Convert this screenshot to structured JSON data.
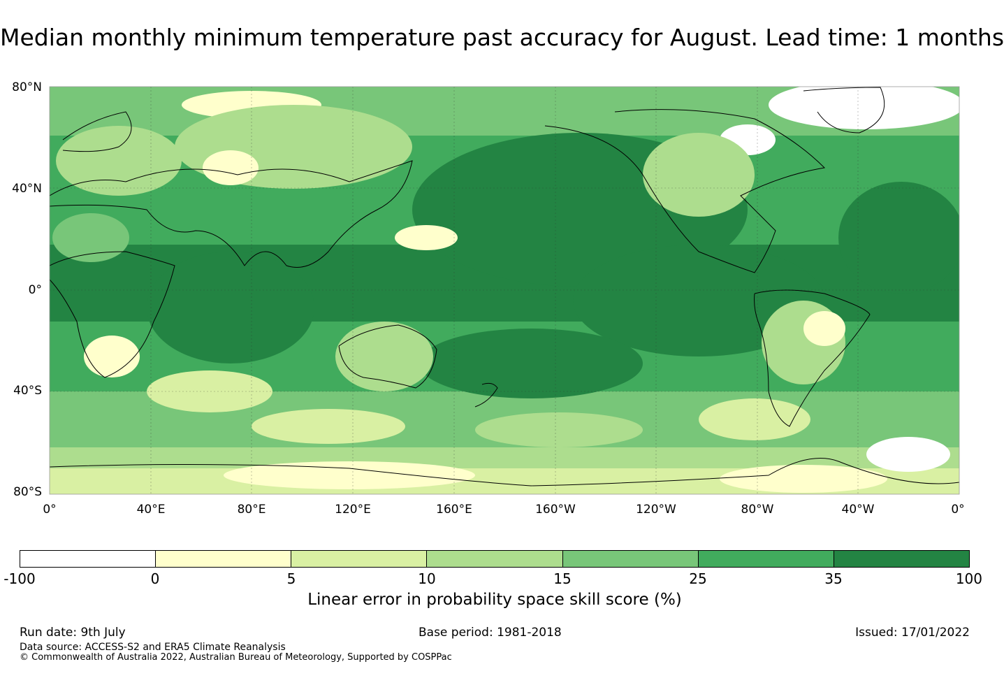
{
  "title": "Median monthly minimum temperature past accuracy for August. Lead time: 1 months",
  "map": {
    "lat_labels": [
      "80°N",
      "40°N",
      "0°",
      "40°S",
      "80°S"
    ],
    "lon_labels": [
      "0°",
      "40°E",
      "80°E",
      "120°E",
      "160°E",
      "160°W",
      "120°W",
      "80°W",
      "40°W",
      "0°"
    ],
    "ocean_color": "#238b45",
    "coastline_color": "#000000"
  },
  "colorbar": {
    "ticks": [
      "-100",
      "0",
      "5",
      "10",
      "15",
      "25",
      "35",
      "100"
    ],
    "colors": [
      "#ffffff",
      "#ffffcc",
      "#d9f0a3",
      "#addd8e",
      "#78c679",
      "#41ab5d",
      "#238443"
    ],
    "label": "Linear error in probability space skill score (%)"
  },
  "footer": {
    "run_date": "Run date: 9th July",
    "base_period": "Base period: 1981-2018",
    "issued": "Issued: 17/01/2022",
    "data_source": "Data source: ACCESS-S2 and ERA5 Climate Reanalysis",
    "copyright": "© Commonwealth of Australia 2022, Australian Bureau of Meteorology, Supported by COSPPac"
  }
}
